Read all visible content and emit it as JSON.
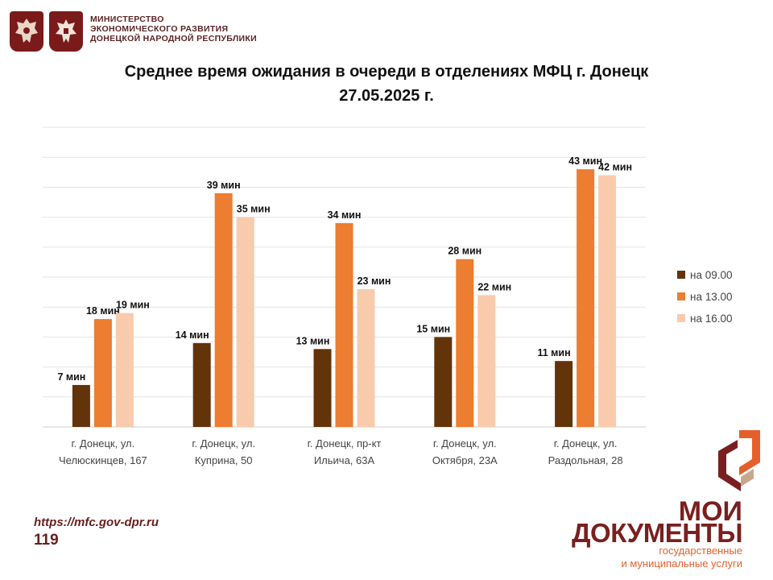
{
  "header": {
    "ministry_lines": [
      "МИНИСТЕРСТВО",
      "ЭКОНОМИЧЕСКОГО РАЗВИТИЯ",
      "ДОНЕЦКОЙ НАРОДНОЙ РЕСПУБЛИКИ"
    ]
  },
  "chart_data": {
    "type": "bar",
    "title_line1": "Среднее время ожидания в очереди в отделениях МФЦ г. Донецк",
    "title_line2": "27.05.2025 г.",
    "categories": [
      [
        "г. Донецк, ул.",
        "Челюскинцев, 167"
      ],
      [
        "г. Донецк, ул.",
        "Куприна, 50"
      ],
      [
        "г. Донецк, пр-кт",
        "Ильича, 63А"
      ],
      [
        "г. Донецк, ул.",
        "Октября, 23А"
      ],
      [
        "г. Донецк, ул.",
        "Раздольная, 28"
      ]
    ],
    "series": [
      {
        "name": "на 09.00",
        "color": "#633309",
        "values": [
          7,
          14,
          13,
          15,
          11
        ]
      },
      {
        "name": "на 13.00",
        "color": "#ec7d31",
        "values": [
          18,
          39,
          34,
          28,
          43
        ]
      },
      {
        "name": "на 16.00",
        "color": "#f8cbad",
        "values": [
          19,
          35,
          23,
          22,
          42
        ]
      }
    ],
    "value_suffix": " мин",
    "ylim": [
      0,
      50
    ],
    "grid": true,
    "legend": "right"
  },
  "footer": {
    "url": "https://mfc.gov-dpr.ru",
    "page": "119"
  },
  "brand": {
    "line1": "МОИ",
    "line2": "ДОКУМЕНТЫ",
    "sub1": "государственные",
    "sub2": "и муниципальные услуги"
  }
}
